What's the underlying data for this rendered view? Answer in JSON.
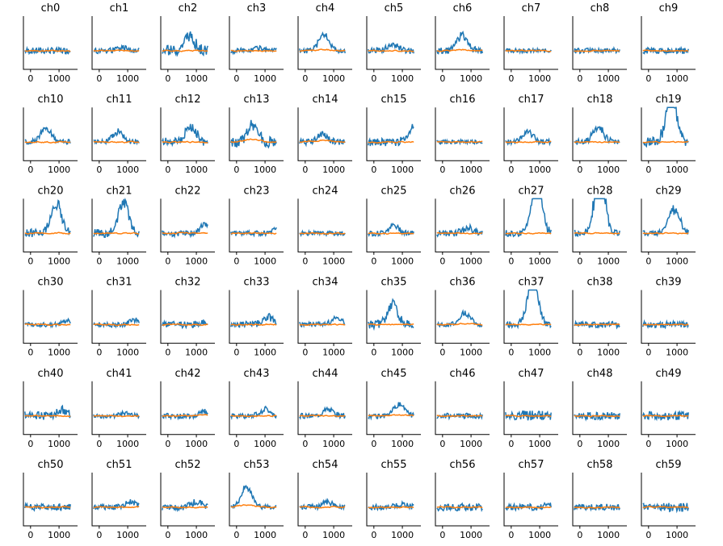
{
  "chart_data": {
    "type": "line",
    "layout": "small-multiples 6x10",
    "xlim": [
      -250,
      1650
    ],
    "ylim": [
      0,
      1
    ],
    "x_tick_labels": [
      "0",
      "1000"
    ],
    "x_ticks": [
      0,
      1000
    ],
    "grid": false,
    "colors": {
      "series_a": "#1f77b4",
      "series_b": "#ff7f0e"
    },
    "channels": [
      {
        "title": "ch0",
        "a_amp": 0.06,
        "peak": 0.0,
        "peak_x": 700,
        "b_offset": 0.0
      },
      {
        "title": "ch1",
        "a_amp": 0.06,
        "peak": 0.05,
        "peak_x": 900,
        "b_offset": 0.0
      },
      {
        "title": "ch2",
        "a_amp": 0.1,
        "peak": 0.28,
        "peak_x": 750,
        "b_offset": 0.0
      },
      {
        "title": "ch3",
        "a_amp": 0.05,
        "peak": 0.06,
        "peak_x": 750,
        "b_offset": 0.0
      },
      {
        "title": "ch4",
        "a_amp": 0.05,
        "peak": 0.3,
        "peak_x": 650,
        "b_offset": 0.02
      },
      {
        "title": "ch5",
        "a_amp": 0.06,
        "peak": 0.12,
        "peak_x": 650,
        "b_offset": 0.0
      },
      {
        "title": "ch6",
        "a_amp": 0.06,
        "peak": 0.3,
        "peak_x": 700,
        "b_offset": 0.02
      },
      {
        "title": "ch7",
        "a_amp": 0.04,
        "peak": 0.0,
        "peak_x": 700,
        "b_offset": 0.0
      },
      {
        "title": "ch8",
        "a_amp": 0.05,
        "peak": 0.0,
        "peak_x": 700,
        "b_offset": 0.0
      },
      {
        "title": "ch9",
        "a_amp": 0.06,
        "peak": 0.0,
        "peak_x": 700,
        "b_offset": 0.0
      },
      {
        "title": "ch10",
        "a_amp": 0.05,
        "peak": 0.25,
        "peak_x": 550,
        "b_offset": 0.0
      },
      {
        "title": "ch11",
        "a_amp": 0.05,
        "peak": 0.2,
        "peak_x": 650,
        "b_offset": 0.0
      },
      {
        "title": "ch12",
        "a_amp": 0.08,
        "peak": 0.3,
        "peak_x": 800,
        "b_offset": 0.0
      },
      {
        "title": "ch13",
        "a_amp": 0.1,
        "peak": 0.3,
        "peak_x": 550,
        "b_offset": 0.05
      },
      {
        "title": "ch14",
        "a_amp": 0.06,
        "peak": 0.15,
        "peak_x": 600,
        "b_offset": 0.03
      },
      {
        "title": "ch15",
        "a_amp": 0.08,
        "peak": 0.3,
        "peak_x": 1400,
        "b_offset": 0.0
      },
      {
        "title": "ch16",
        "a_amp": 0.04,
        "peak": 0.0,
        "peak_x": 700,
        "b_offset": 0.0
      },
      {
        "title": "ch17",
        "a_amp": 0.05,
        "peak": 0.18,
        "peak_x": 600,
        "b_offset": 0.0
      },
      {
        "title": "ch18",
        "a_amp": 0.06,
        "peak": 0.28,
        "peak_x": 650,
        "b_offset": 0.0
      },
      {
        "title": "ch19",
        "a_amp": 0.1,
        "peak": 0.95,
        "peak_x": 800,
        "b_offset": 0.0
      },
      {
        "title": "ch20",
        "a_amp": 0.08,
        "peak": 0.55,
        "peak_x": 900,
        "b_offset": 0.0
      },
      {
        "title": "ch21",
        "a_amp": 0.08,
        "peak": 0.6,
        "peak_x": 850,
        "b_offset": 0.0
      },
      {
        "title": "ch22",
        "a_amp": 0.06,
        "peak": 0.15,
        "peak_x": 1300,
        "b_offset": 0.0
      },
      {
        "title": "ch23",
        "a_amp": 0.05,
        "peak": 0.08,
        "peak_x": 1400,
        "b_offset": 0.0
      },
      {
        "title": "ch24",
        "a_amp": 0.04,
        "peak": 0.0,
        "peak_x": 700,
        "b_offset": 0.0
      },
      {
        "title": "ch25",
        "a_amp": 0.05,
        "peak": 0.15,
        "peak_x": 700,
        "b_offset": 0.0
      },
      {
        "title": "ch26",
        "a_amp": 0.06,
        "peak": 0.1,
        "peak_x": 900,
        "b_offset": 0.0
      },
      {
        "title": "ch27",
        "a_amp": 0.06,
        "peak": 0.95,
        "peak_x": 900,
        "b_offset": 0.0
      },
      {
        "title": "ch28",
        "a_amp": 0.06,
        "peak": 1.1,
        "peak_x": 700,
        "b_offset": 0.0
      },
      {
        "title": "ch29",
        "a_amp": 0.06,
        "peak": 0.45,
        "peak_x": 900,
        "b_offset": 0.0
      },
      {
        "title": "ch30",
        "a_amp": 0.04,
        "peak": 0.08,
        "peak_x": 1300,
        "b_offset": 0.0
      },
      {
        "title": "ch31",
        "a_amp": 0.05,
        "peak": 0.1,
        "peak_x": 1300,
        "b_offset": 0.0
      },
      {
        "title": "ch32",
        "a_amp": 0.06,
        "peak": 0.05,
        "peak_x": 1300,
        "b_offset": 0.0
      },
      {
        "title": "ch33",
        "a_amp": 0.06,
        "peak": 0.15,
        "peak_x": 1100,
        "b_offset": 0.0
      },
      {
        "title": "ch34",
        "a_amp": 0.05,
        "peak": 0.12,
        "peak_x": 1100,
        "b_offset": 0.0
      },
      {
        "title": "ch35",
        "a_amp": 0.08,
        "peak": 0.4,
        "peak_x": 650,
        "b_offset": 0.0
      },
      {
        "title": "ch36",
        "a_amp": 0.04,
        "peak": 0.22,
        "peak_x": 800,
        "b_offset": 0.02
      },
      {
        "title": "ch37",
        "a_amp": 0.06,
        "peak": 0.9,
        "peak_x": 750,
        "b_offset": 0.0
      },
      {
        "title": "ch38",
        "a_amp": 0.06,
        "peak": 0.0,
        "peak_x": 700,
        "b_offset": 0.0
      },
      {
        "title": "ch39",
        "a_amp": 0.06,
        "peak": 0.0,
        "peak_x": 700,
        "b_offset": 0.0
      },
      {
        "title": "ch40",
        "a_amp": 0.08,
        "peak": 0.1,
        "peak_x": 1100,
        "b_offset": 0.0
      },
      {
        "title": "ch41",
        "a_amp": 0.04,
        "peak": 0.05,
        "peak_x": 900,
        "b_offset": 0.0
      },
      {
        "title": "ch42",
        "a_amp": 0.05,
        "peak": 0.08,
        "peak_x": 1300,
        "b_offset": 0.02
      },
      {
        "title": "ch43",
        "a_amp": 0.05,
        "peak": 0.12,
        "peak_x": 1000,
        "b_offset": 0.0
      },
      {
        "title": "ch44",
        "a_amp": 0.05,
        "peak": 0.12,
        "peak_x": 800,
        "b_offset": 0.0
      },
      {
        "title": "ch45",
        "a_amp": 0.05,
        "peak": 0.22,
        "peak_x": 900,
        "b_offset": 0.02
      },
      {
        "title": "ch46",
        "a_amp": 0.05,
        "peak": 0.0,
        "peak_x": 700,
        "b_offset": 0.0
      },
      {
        "title": "ch47",
        "a_amp": 0.1,
        "peak": 0.0,
        "peak_x": 700,
        "b_offset": 0.0
      },
      {
        "title": "ch48",
        "a_amp": 0.07,
        "peak": 0.0,
        "peak_x": 700,
        "b_offset": 0.0
      },
      {
        "title": "ch49",
        "a_amp": 0.08,
        "peak": 0.0,
        "peak_x": 700,
        "b_offset": 0.0
      },
      {
        "title": "ch50",
        "a_amp": 0.06,
        "peak": 0.0,
        "peak_x": 700,
        "b_offset": 0.0
      },
      {
        "title": "ch51",
        "a_amp": 0.05,
        "peak": 0.1,
        "peak_x": 1100,
        "b_offset": 0.0
      },
      {
        "title": "ch52",
        "a_amp": 0.06,
        "peak": 0.1,
        "peak_x": 1000,
        "b_offset": 0.0
      },
      {
        "title": "ch53",
        "a_amp": 0.04,
        "peak": 0.38,
        "peak_x": 350,
        "b_offset": 0.04
      },
      {
        "title": "ch54",
        "a_amp": 0.05,
        "peak": 0.1,
        "peak_x": 800,
        "b_offset": 0.0
      },
      {
        "title": "ch55",
        "a_amp": 0.05,
        "peak": 0.06,
        "peak_x": 1000,
        "b_offset": 0.0
      },
      {
        "title": "ch56",
        "a_amp": 0.07,
        "peak": 0.0,
        "peak_x": 700,
        "b_offset": 0.0
      },
      {
        "title": "ch57",
        "a_amp": 0.06,
        "peak": 0.05,
        "peak_x": 1400,
        "b_offset": 0.0
      },
      {
        "title": "ch58",
        "a_amp": 0.06,
        "peak": 0.0,
        "peak_x": 700,
        "b_offset": 0.0
      },
      {
        "title": "ch59",
        "a_amp": 0.08,
        "peak": 0.0,
        "peak_x": 700,
        "b_offset": 0.0
      }
    ]
  }
}
